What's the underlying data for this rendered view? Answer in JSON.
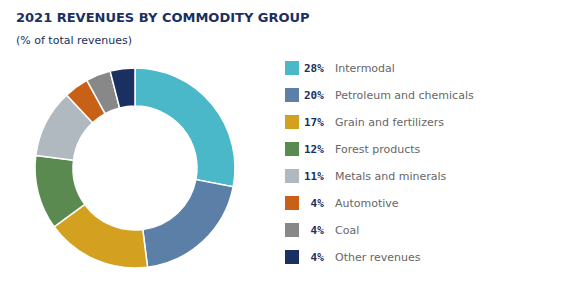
{
  "chart_data": {
    "type": "pie",
    "title": "2021 REVENUES BY COMMODITY GROUP",
    "subtitle": "(% of total revenues)",
    "categories": [
      "Intermodal",
      "Petroleum and chemicals",
      "Grain and fertilizers",
      "Forest products",
      "Metals and minerals",
      "Automotive",
      "Coal",
      "Other revenues"
    ],
    "values": [
      28,
      20,
      17,
      12,
      11,
      4,
      4,
      4
    ],
    "value_labels": [
      "28%",
      "20%",
      "17%",
      "12%",
      "11%",
      " 4%",
      " 4%",
      " 4%"
    ],
    "colors": [
      "#4ab8c8",
      "#5b7fa6",
      "#d4a020",
      "#5a8a50",
      "#b0b8c0",
      "#c86018",
      "#888888",
      "#1a3060"
    ],
    "legend": "right"
  }
}
